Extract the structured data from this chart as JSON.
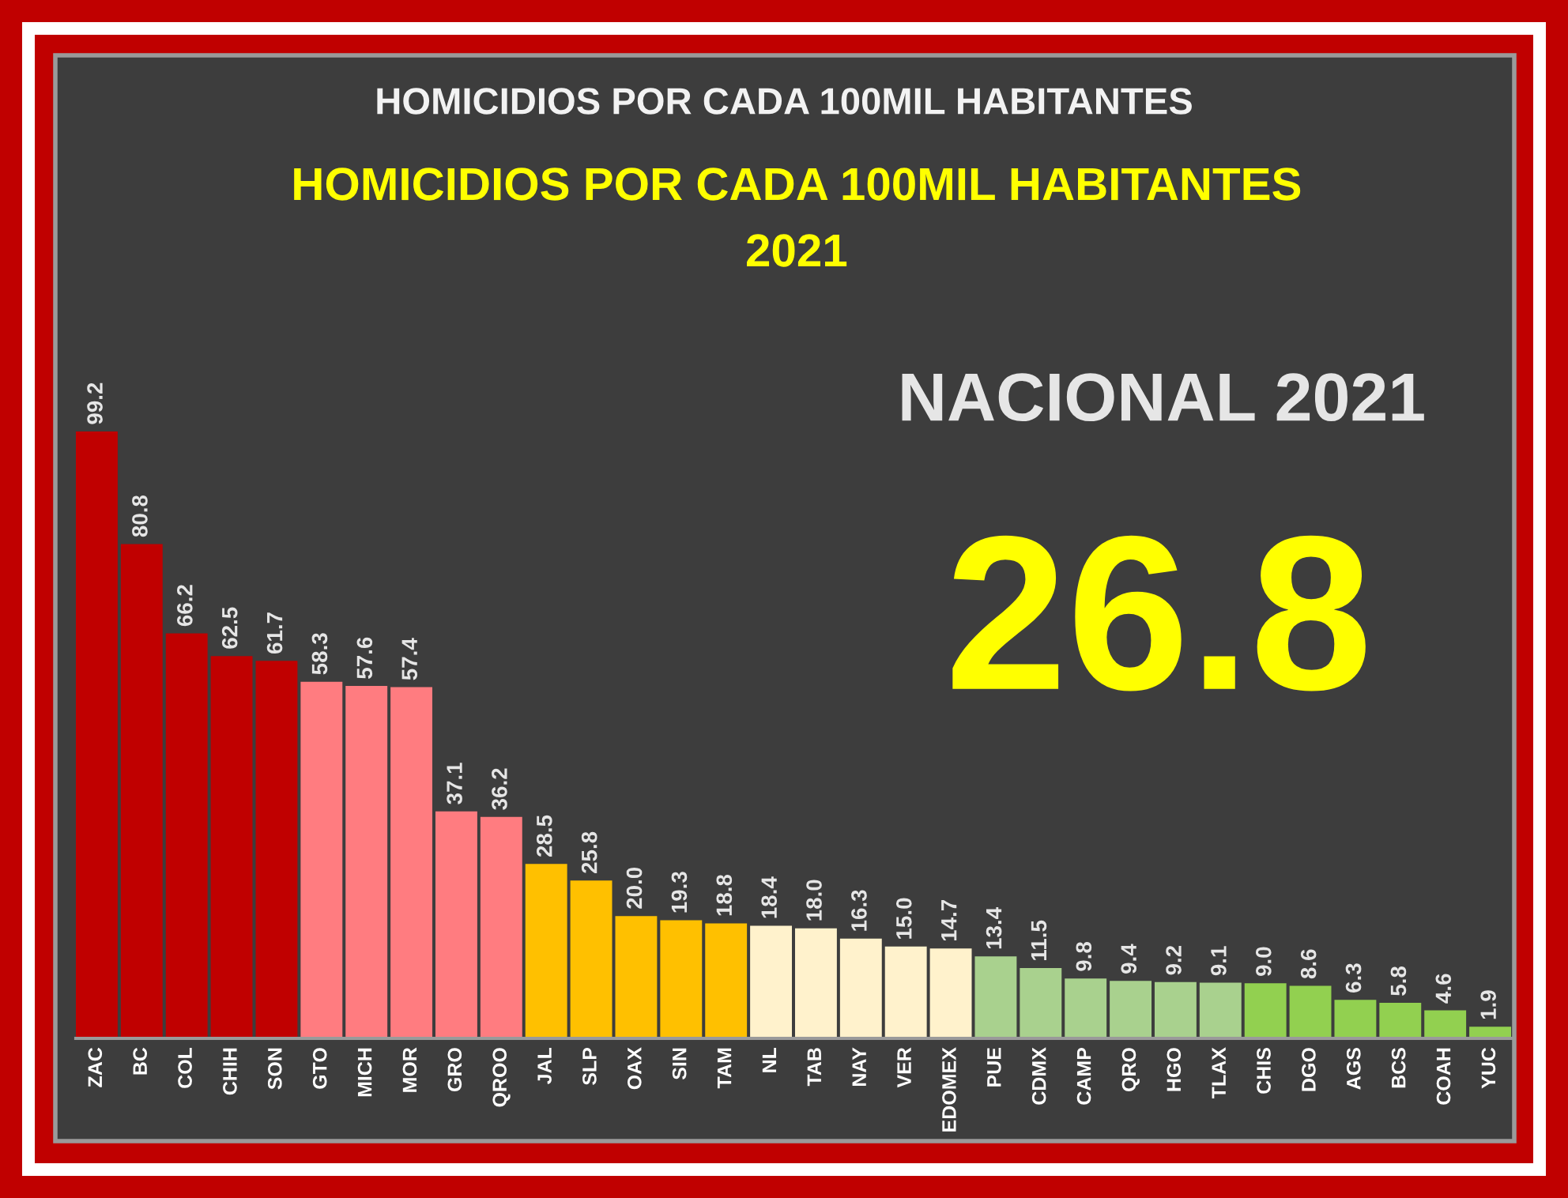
{
  "chart_data": {
    "type": "bar",
    "title": "HOMICIDIOS POR CADA 100MIL HABITANTES",
    "subtitle": "HOMICIDIOS POR CADA 100MIL HABITANTES\n2021",
    "categories": [
      "ZAC",
      "BC",
      "COL",
      "CHIH",
      "SON",
      "GTO",
      "MICH",
      "MOR",
      "GRO",
      "QROO",
      "JAL",
      "SLP",
      "OAX",
      "SIN",
      "TAM",
      "NL",
      "TAB",
      "NAY",
      "VER",
      "EDOMEX",
      "PUE",
      "CDMX",
      "CAMP",
      "QRO",
      "HGO",
      "TLAX",
      "CHIS",
      "DGO",
      "AGS",
      "BCS",
      "COAH",
      "YUC"
    ],
    "values": [
      99.2,
      80.8,
      66.2,
      62.5,
      61.7,
      58.3,
      57.6,
      57.4,
      37.1,
      36.2,
      28.5,
      25.8,
      20.0,
      19.3,
      18.8,
      18.4,
      18.0,
      16.3,
      15.0,
      14.7,
      13.4,
      11.5,
      9.8,
      9.4,
      9.2,
      9.1,
      9.0,
      8.6,
      6.3,
      5.8,
      4.6,
      1.9
    ],
    "value_labels": [
      "99.2",
      "80.8",
      "66.2",
      "62.5",
      "61.7",
      "58.3",
      "57.6",
      "57.4",
      "37.1",
      "36.2",
      "28.5",
      "25.8",
      "20.0",
      "19.3",
      "18.8",
      "18.4",
      "18.0",
      "16.3",
      "15.0",
      "14.7",
      "13.4",
      "11.5",
      "9.8",
      "9.4",
      "9.2",
      "9.1",
      "9.0",
      "8.6",
      "6.3",
      "5.8",
      "4.6",
      "1.9"
    ],
    "colors": [
      "#c00000",
      "#c00000",
      "#c00000",
      "#c00000",
      "#c00000",
      "#ff7c80",
      "#ff7c80",
      "#ff7c80",
      "#ff7c80",
      "#ff7c80",
      "#ffc000",
      "#ffc000",
      "#ffc000",
      "#ffc000",
      "#ffc000",
      "#fff2cc",
      "#fff2cc",
      "#fff2cc",
      "#fff2cc",
      "#fff2cc",
      "#a9d18e",
      "#a9d18e",
      "#a9d18e",
      "#a9d18e",
      "#a9d18e",
      "#a9d18e",
      "#92d050",
      "#92d050",
      "#92d050",
      "#92d050",
      "#92d050",
      "#92d050"
    ],
    "annotations": [
      "NACIONAL 2021",
      "26.8"
    ]
  }
}
